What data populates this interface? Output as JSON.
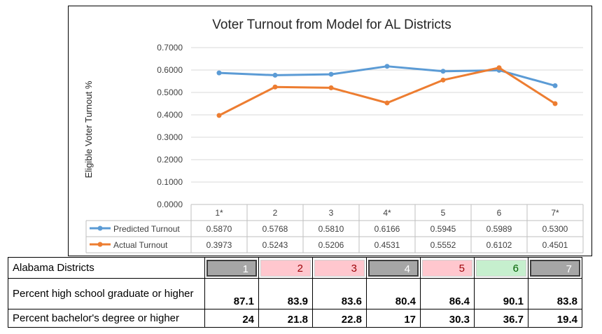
{
  "chart_data": {
    "type": "line",
    "title": "Voter Turnout from Model for AL Districts",
    "ylabel": "Eligible Voter Turnout %",
    "xlabel": "",
    "categories": [
      "1*",
      "2",
      "3",
      "4*",
      "5",
      "6",
      "7*"
    ],
    "ylim": [
      0,
      0.7
    ],
    "yticks": [
      "0.0000",
      "0.1000",
      "0.2000",
      "0.3000",
      "0.4000",
      "0.5000",
      "0.6000",
      "0.7000"
    ],
    "grid": true,
    "legend": "bottom-left",
    "series": [
      {
        "name": "Predicted Turnout",
        "color": "#5b9bd5",
        "values": [
          0.587,
          0.5768,
          0.581,
          0.6166,
          0.5945,
          0.5989,
          0.53
        ],
        "labels": [
          "0.5870",
          "0.5768",
          "0.5810",
          "0.6166",
          "0.5945",
          "0.5989",
          "0.5300"
        ]
      },
      {
        "name": "Actual Turnout",
        "color": "#ed7d31",
        "values": [
          0.3973,
          0.5243,
          0.5206,
          0.4531,
          0.5552,
          0.6102,
          0.4501
        ],
        "labels": [
          "0.3973",
          "0.5243",
          "0.5206",
          "0.4531",
          "0.5552",
          "0.6102",
          "0.4501"
        ]
      }
    ]
  },
  "table": {
    "header_label": "Alabama Districts",
    "districts": [
      {
        "label": "1",
        "fill": "#a6a6a6",
        "text_color": "#ffffff"
      },
      {
        "label": "2",
        "fill": "#ffc7ce",
        "text_color": "#9c0006"
      },
      {
        "label": "3",
        "fill": "#ffc7ce",
        "text_color": "#9c0006"
      },
      {
        "label": "4",
        "fill": "#a6a6a6",
        "text_color": "#ffffff"
      },
      {
        "label": "5",
        "fill": "#ffc7ce",
        "text_color": "#9c0006"
      },
      {
        "label": "6",
        "fill": "#c6efce",
        "text_color": "#006100"
      },
      {
        "label": "7",
        "fill": "#a6a6a6",
        "text_color": "#ffffff"
      }
    ],
    "rows": [
      {
        "label": "Percent high school graduate or higher",
        "values": [
          "87.1",
          "83.9",
          "83.6",
          "80.4",
          "86.4",
          "90.1",
          "83.8"
        ]
      },
      {
        "label": "Percent bachelor's degree or higher",
        "values": [
          "24",
          "21.8",
          "22.8",
          "17",
          "30.3",
          "36.7",
          "19.4"
        ]
      }
    ]
  }
}
